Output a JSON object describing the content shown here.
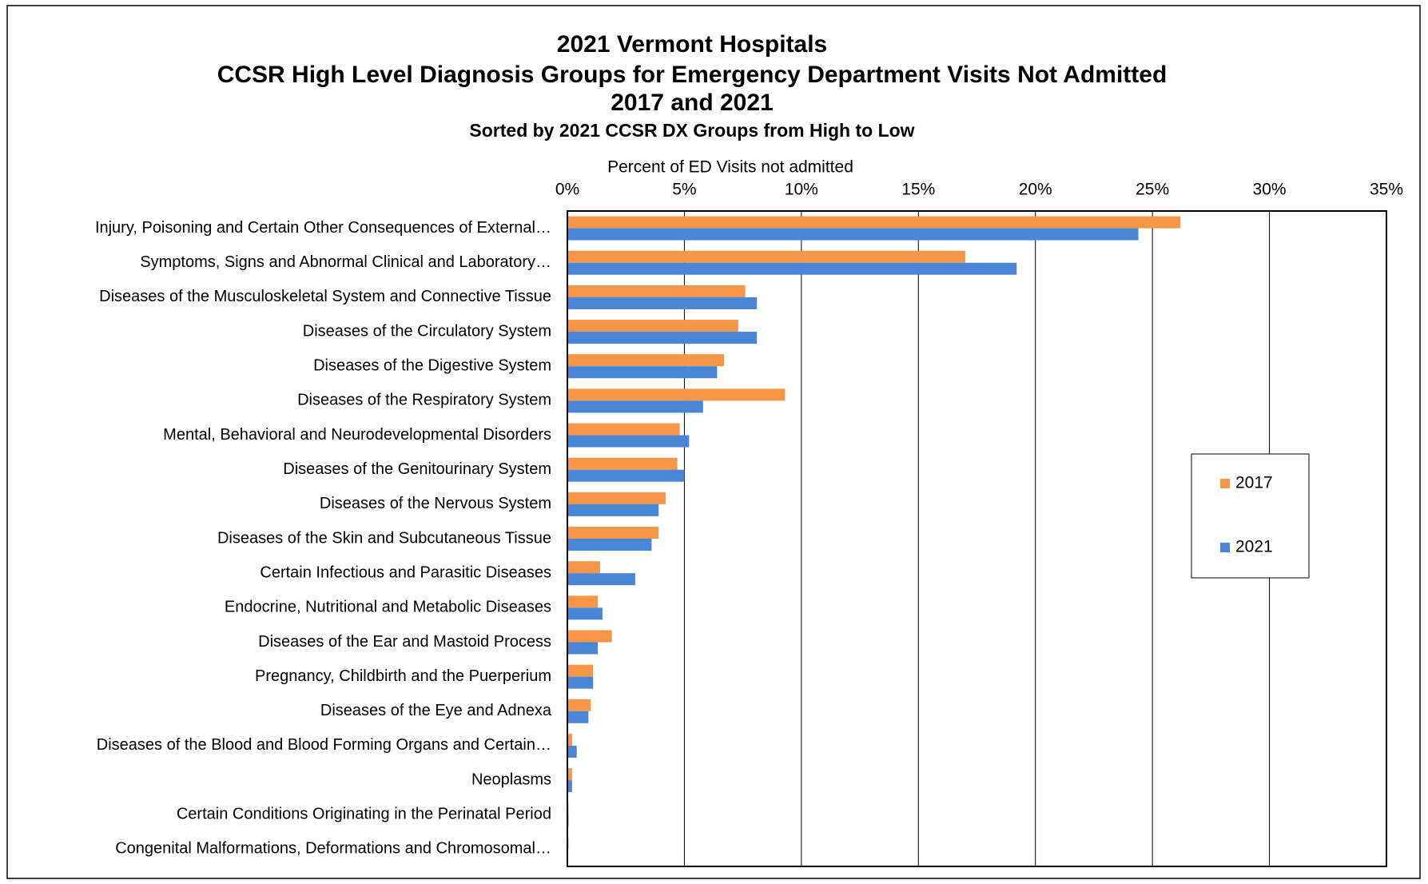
{
  "chart_data": {
    "type": "hbar",
    "title": [
      "2021 Vermont Hospitals",
      "CCSR High Level Diagnosis Groups for Emergency Department Visits Not Admitted",
      "2017 and 2021"
    ],
    "subtitle": "Sorted by 2021 CCSR DX Groups from High to Low",
    "x_label": "Percent of ED Visits not admitted",
    "categories": [
      "Injury, Poisoning and Certain Other Consequences of External…",
      "Symptoms, Signs and Abnormal Clinical and Laboratory…",
      "Diseases of the Musculoskeletal System and Connective Tissue",
      "Diseases of the Circulatory System",
      "Diseases of the Digestive System",
      "Diseases of the Respiratory System",
      "Mental, Behavioral and Neurodevelopmental Disorders",
      "Diseases of the Genitourinary System",
      "Diseases of the Nervous System",
      "Diseases of the Skin and Subcutaneous Tissue",
      "Certain Infectious and Parasitic Diseases",
      "Endocrine, Nutritional and Metabolic Diseases",
      "Diseases of the Ear and Mastoid Process",
      "Pregnancy, Childbirth and the Puerperium",
      "Diseases of the Eye and Adnexa",
      "Diseases of the Blood and Blood Forming Organs and Certain…",
      "Neoplasms",
      "Certain Conditions Originating in the Perinatal Period",
      "Congenital Malformations, Deformations and Chromosomal…"
    ],
    "series": [
      {
        "name": "2017",
        "color": "#f79646",
        "values": [
          26.2,
          17.0,
          7.6,
          7.3,
          6.7,
          9.3,
          4.8,
          4.7,
          4.2,
          3.9,
          1.4,
          1.3,
          1.9,
          1.1,
          1.0,
          0.2,
          0.2,
          0.05,
          0.05
        ]
      },
      {
        "name": "2021",
        "color": "#4a86d8",
        "values": [
          24.4,
          19.2,
          8.1,
          8.1,
          6.4,
          5.8,
          5.2,
          5.0,
          3.9,
          3.6,
          2.9,
          1.5,
          1.3,
          1.1,
          0.9,
          0.4,
          0.2,
          0.05,
          0.0
        ]
      }
    ],
    "xlim": [
      0,
      35
    ],
    "xticks": [
      {
        "value": 0,
        "label": "0%"
      },
      {
        "value": 5,
        "label": "5%"
      },
      {
        "value": 10,
        "label": "10%"
      },
      {
        "value": 15,
        "label": "15%"
      },
      {
        "value": 20,
        "label": "20%"
      },
      {
        "value": 25,
        "label": "25%"
      },
      {
        "value": 30,
        "label": "30%"
      },
      {
        "value": 35,
        "label": "35%"
      }
    ],
    "grid": true,
    "legend": "right"
  }
}
